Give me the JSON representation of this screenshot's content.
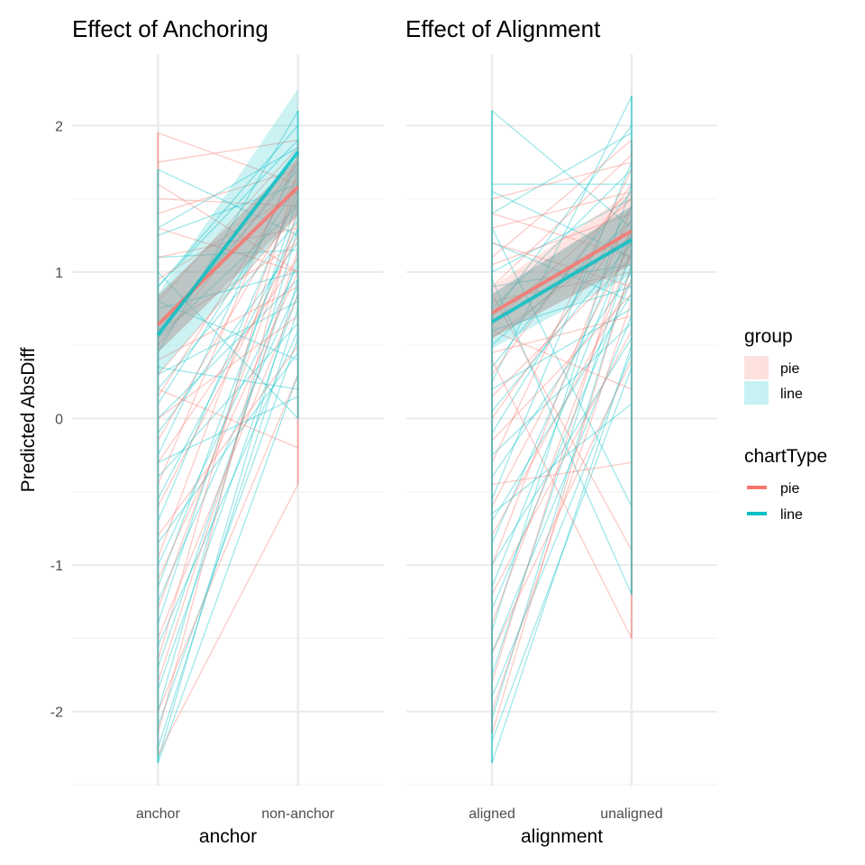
{
  "colors": {
    "pie": "#F8766D",
    "line": "#00BFC4",
    "grid_major": "#ebebeb",
    "grid_minor": "#f4f4f4",
    "overlap": "#9e9e9e"
  },
  "legend": {
    "group_title": "group",
    "group_items": [
      {
        "key": "pie",
        "label": "pie"
      },
      {
        "key": "line",
        "label": "line"
      }
    ],
    "charttype_title": "chartType",
    "charttype_items": [
      {
        "key": "pie",
        "label": "pie"
      },
      {
        "key": "line",
        "label": "line"
      }
    ],
    "placement": "right"
  },
  "chart_data": [
    {
      "type": "line",
      "title": "Effect of Anchoring",
      "xlabel": "anchor",
      "ylabel": "Predicted AbsDiff",
      "categories": [
        "anchor",
        "non-anchor"
      ],
      "ylim": [
        -2.5,
        2.5
      ],
      "yticks": [
        -2,
        -1,
        0,
        1,
        2
      ],
      "grid": true,
      "series": [
        {
          "name": "pie",
          "values": [
            0.64,
            1.58
          ],
          "ci_lower": [
            0.45,
            1.38
          ],
          "ci_upper": [
            0.84,
            1.78
          ]
        },
        {
          "name": "line",
          "values": [
            0.57,
            1.82
          ],
          "ci_lower": [
            0.3,
            1.4
          ],
          "ci_upper": [
            0.85,
            2.25
          ]
        }
      ],
      "participants": {
        "pie": [
          [
            1.95,
            1.6
          ],
          [
            1.75,
            1.9
          ],
          [
            1.5,
            1.45
          ],
          [
            1.4,
            1.7
          ],
          [
            1.3,
            1.0
          ],
          [
            1.1,
            1.3
          ],
          [
            0.95,
            1.55
          ],
          [
            0.8,
            1.85
          ],
          [
            0.6,
            1.2
          ],
          [
            0.5,
            1.75
          ],
          [
            0.4,
            0.9
          ],
          [
            0.3,
            1.4
          ],
          [
            0.15,
            1.65
          ],
          [
            0.0,
            0.7
          ],
          [
            -0.15,
            1.5
          ],
          [
            -0.3,
            1.1
          ],
          [
            -0.45,
            1.8
          ],
          [
            -0.6,
            1.25
          ],
          [
            -0.8,
            0.5
          ],
          [
            -0.95,
            1.6
          ],
          [
            -1.1,
            1.0
          ],
          [
            -1.3,
            1.35
          ],
          [
            -1.5,
            0.85
          ],
          [
            -1.65,
            1.7
          ],
          [
            -1.8,
            1.15
          ],
          [
            -2.0,
            0.3
          ],
          [
            -2.15,
            1.45
          ],
          [
            -2.3,
            -0.45
          ],
          [
            0.2,
            -0.2
          ],
          [
            1.6,
            1.0
          ]
        ],
        "line": [
          [
            1.7,
            1.25
          ],
          [
            1.3,
            1.85
          ],
          [
            1.25,
            1.6
          ],
          [
            1.1,
            1.15
          ],
          [
            0.9,
            1.9
          ],
          [
            0.75,
            1.0
          ],
          [
            0.55,
            1.45
          ],
          [
            0.45,
            2.1
          ],
          [
            0.3,
            0.8
          ],
          [
            0.2,
            1.35
          ],
          [
            0.1,
            1.6
          ],
          [
            0.0,
            0.95
          ],
          [
            -0.1,
            1.2
          ],
          [
            -0.25,
            1.75
          ],
          [
            -0.4,
            0.65
          ],
          [
            -0.55,
            1.3
          ],
          [
            -0.7,
            1.55
          ],
          [
            -0.85,
            0.45
          ],
          [
            -1.0,
            1.05
          ],
          [
            -1.15,
            1.4
          ],
          [
            -1.25,
            0.9
          ],
          [
            -1.4,
            1.5
          ],
          [
            -1.55,
            0.6
          ],
          [
            -1.7,
            1.1
          ],
          [
            -1.85,
            0.85
          ],
          [
            -2.0,
            1.3
          ],
          [
            -2.1,
            0.55
          ],
          [
            -2.25,
            0.75
          ],
          [
            -2.33,
            0.95
          ],
          [
            -2.35,
            0.3
          ],
          [
            0.8,
            0.4
          ],
          [
            1.0,
            0.0
          ],
          [
            0.35,
            0.2
          ],
          [
            0.9,
            2.0
          ],
          [
            -0.3,
            0.15
          ],
          [
            0.6,
            1.7
          ]
        ]
      }
    },
    {
      "type": "line",
      "title": "Effect of Alignment",
      "xlabel": "alignment",
      "ylabel": "",
      "categories": [
        "aligned",
        "unaligned"
      ],
      "ylim": [
        -2.5,
        2.5
      ],
      "yticks": [
        -2,
        -1,
        0,
        1,
        2
      ],
      "grid": true,
      "series": [
        {
          "name": "pie",
          "values": [
            0.72,
            1.28
          ],
          "ci_lower": [
            0.55,
            1.05
          ],
          "ci_upper": [
            0.9,
            1.55
          ]
        },
        {
          "name": "line",
          "values": [
            0.66,
            1.22
          ],
          "ci_lower": [
            0.48,
            0.98
          ],
          "ci_upper": [
            0.85,
            1.45
          ]
        }
      ],
      "participants": {
        "pie": [
          [
            1.5,
            1.75
          ],
          [
            1.4,
            1.1
          ],
          [
            1.3,
            1.55
          ],
          [
            1.2,
            0.9
          ],
          [
            1.05,
            1.4
          ],
          [
            0.9,
            1.8
          ],
          [
            0.8,
            1.0
          ],
          [
            0.65,
            1.5
          ],
          [
            0.55,
            1.25
          ],
          [
            0.45,
            0.7
          ],
          [
            0.3,
            1.6
          ],
          [
            0.15,
            1.1
          ],
          [
            0.0,
            1.35
          ],
          [
            -0.15,
            0.85
          ],
          [
            -0.3,
            1.7
          ],
          [
            -0.45,
            -0.3
          ],
          [
            -0.6,
            1.2
          ],
          [
            -0.8,
            0.95
          ],
          [
            -1.0,
            1.45
          ],
          [
            -1.2,
            0.6
          ],
          [
            -1.4,
            1.15
          ],
          [
            -1.6,
            0.4
          ],
          [
            -1.8,
            1.3
          ],
          [
            -2.0,
            0.8
          ],
          [
            -2.15,
            1.05
          ],
          [
            0.85,
            -0.9
          ],
          [
            0.4,
            -1.5
          ],
          [
            1.1,
            1.9
          ],
          [
            0.6,
            0.2
          ]
        ],
        "line": [
          [
            2.1,
            1.3
          ],
          [
            1.6,
            1.6
          ],
          [
            1.55,
            1.1
          ],
          [
            1.4,
            1.95
          ],
          [
            1.2,
            0.8
          ],
          [
            1.0,
            1.5
          ],
          [
            0.9,
            1.05
          ],
          [
            0.75,
            1.7
          ],
          [
            0.6,
            0.9
          ],
          [
            0.5,
            1.35
          ],
          [
            0.35,
            1.55
          ],
          [
            0.2,
            0.75
          ],
          [
            0.05,
            1.2
          ],
          [
            -0.1,
            1.45
          ],
          [
            -0.25,
            0.65
          ],
          [
            -0.4,
            1.0
          ],
          [
            -0.55,
            1.75
          ],
          [
            -0.7,
            0.85
          ],
          [
            -0.85,
            1.3
          ],
          [
            -1.0,
            0.55
          ],
          [
            -1.15,
            1.25
          ],
          [
            -1.3,
            0.95
          ],
          [
            -1.45,
            1.6
          ],
          [
            -1.6,
            0.7
          ],
          [
            -1.75,
            1.15
          ],
          [
            -1.9,
            0.45
          ],
          [
            -2.05,
            1.05
          ],
          [
            -2.2,
            0.35
          ],
          [
            -2.35,
            0.5
          ],
          [
            1.3,
            -0.6
          ],
          [
            0.95,
            -1.2
          ],
          [
            0.25,
            2.2
          ],
          [
            -0.65,
            0.1
          ],
          [
            0.7,
            2.0
          ]
        ]
      }
    }
  ]
}
